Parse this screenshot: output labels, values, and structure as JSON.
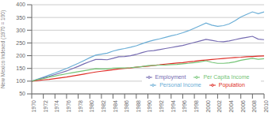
{
  "chart_data": {
    "type": "line",
    "ylabel": "New Mexico Indexed (1970 = 100)",
    "x": [
      1970,
      1971,
      1972,
      1973,
      1974,
      1975,
      1976,
      1977,
      1978,
      1979,
      1980,
      1981,
      1982,
      1983,
      1984,
      1985,
      1986,
      1987,
      1988,
      1989,
      1990,
      1991,
      1992,
      1993,
      1994,
      1995,
      1996,
      1997,
      1998,
      1999,
      2000,
      2001,
      2002,
      2003,
      2004,
      2005,
      2006,
      2007,
      2008,
      2009,
      2010
    ],
    "series": [
      {
        "name": "Personal Income",
        "color": "#6baed6",
        "values": [
          100,
          108,
          116,
          124,
          132,
          141,
          150,
          160,
          170,
          181,
          192,
          202,
          206,
          210,
          218,
          224,
          228,
          233,
          239,
          247,
          255,
          261,
          266,
          272,
          278,
          283,
          290,
          298,
          308,
          318,
          328,
          320,
          315,
          318,
          325,
          337,
          352,
          362,
          372,
          365,
          372
        ]
      },
      {
        "name": "Employment",
        "color": "#756bb1",
        "values": [
          100,
          106,
          113,
          119,
          126,
          133,
          140,
          149,
          158,
          168,
          177,
          185,
          185,
          184,
          190,
          196,
          197,
          200,
          205,
          212,
          218,
          220,
          224,
          228,
          232,
          236,
          240,
          246,
          252,
          258,
          264,
          260,
          256,
          255,
          258,
          263,
          268,
          272,
          276,
          265,
          263
        ]
      },
      {
        "name": "Population",
        "color": "#de2d26",
        "values": [
          100,
          102,
          105,
          107,
          110,
          113,
          116,
          120,
          124,
          128,
          132,
          136,
          139,
          142,
          145,
          148,
          150,
          152,
          155,
          157,
          159,
          162,
          164,
          167,
          169,
          171,
          173,
          176,
          178,
          181,
          183,
          185,
          187,
          189,
          191,
          193,
          194,
          196,
          197,
          198,
          199
        ]
      },
      {
        "name": "Per Capita Income",
        "color": "#74c476",
        "values": [
          100,
          106,
          110,
          116,
          120,
          125,
          129,
          133,
          137,
          141,
          145,
          149,
          148,
          148,
          151,
          152,
          152,
          153,
          155,
          157,
          161,
          162,
          163,
          163,
          165,
          166,
          168,
          170,
          173,
          176,
          180,
          174,
          170,
          170,
          172,
          176,
          182,
          186,
          190,
          186,
          188
        ]
      }
    ],
    "xlim": [
      1970,
      2010
    ],
    "ylim": [
      50,
      400
    ],
    "xticks": [
      1970,
      1972,
      1974,
      1976,
      1978,
      1980,
      1982,
      1984,
      1986,
      1988,
      1990,
      1992,
      1994,
      1996,
      1998,
      2000,
      2002,
      2004,
      2006,
      2008,
      2010
    ],
    "yticks": [
      50,
      100,
      150,
      200,
      250,
      300,
      350,
      400
    ],
    "grid": true,
    "legend": "lower right"
  }
}
